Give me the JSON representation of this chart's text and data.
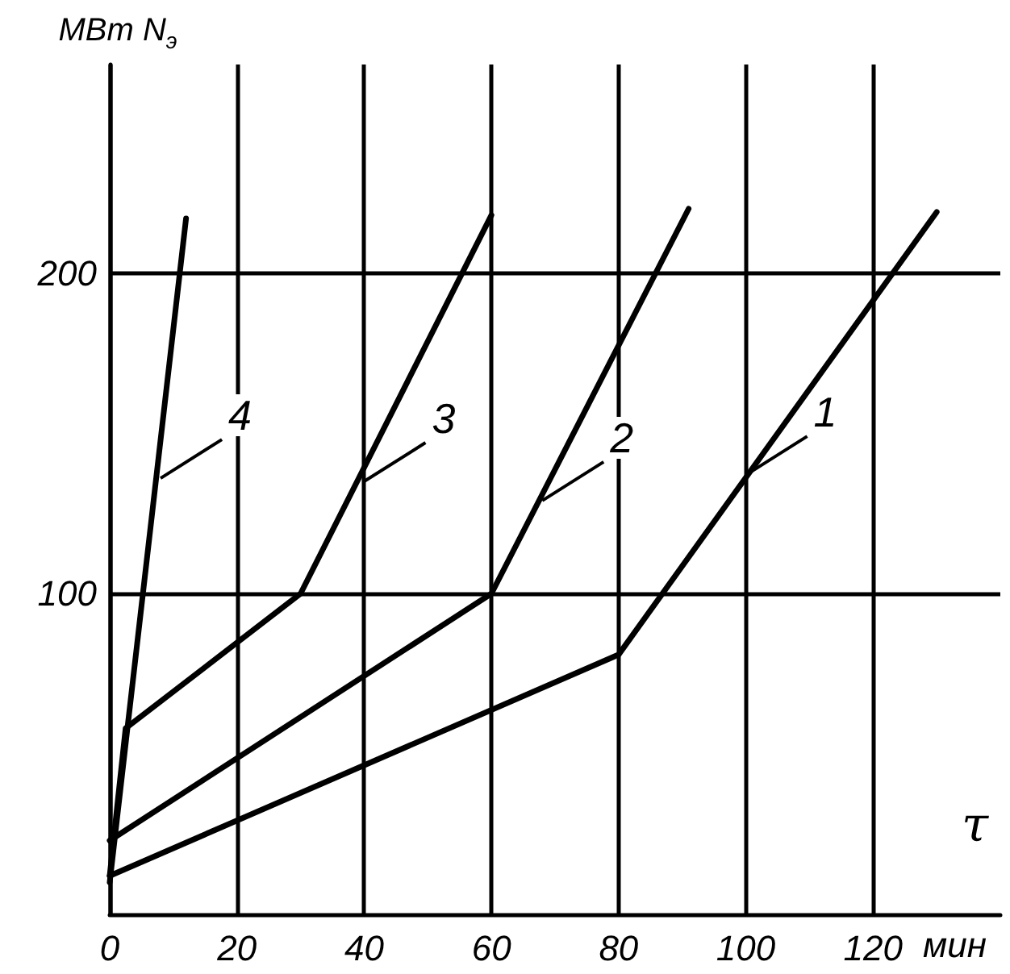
{
  "chart_data": {
    "type": "line",
    "xlabel": "τ",
    "ylabel": "МВт N$_{э}$",
    "xlim": [
      0,
      140
    ],
    "ylim": [
      0,
      265
    ],
    "xticks": [
      0,
      20,
      40,
      60,
      80,
      100,
      120
    ],
    "yticks": [
      100,
      200
    ],
    "grid": true,
    "marker": "none",
    "line_style": "solid",
    "series": [
      {
        "color": "#000000",
        "x": [
          0,
          80,
          130
        ],
        "values": [
          12,
          81,
          219
        ]
      },
      {
        "color": "#000000",
        "x": [
          0,
          60,
          91
        ],
        "values": [
          23,
          100,
          220
        ]
      },
      {
        "color": "#000000",
        "x": [
          0,
          2.5,
          30,
          60
        ],
        "values": [
          12,
          58,
          100,
          218
        ]
      },
      {
        "color": "#000000",
        "x": [
          0,
          12
        ],
        "values": [
          10,
          217
        ]
      }
    ],
    "annotations": [
      {
        "text": "1",
        "x": 100,
        "y": 137
      },
      {
        "text": "2",
        "x": 68,
        "y": 129
      },
      {
        "text": "3",
        "x": 40,
        "y": 135
      },
      {
        "text": "4",
        "x": 8,
        "y": 136
      },
      "мин"
    ]
  }
}
